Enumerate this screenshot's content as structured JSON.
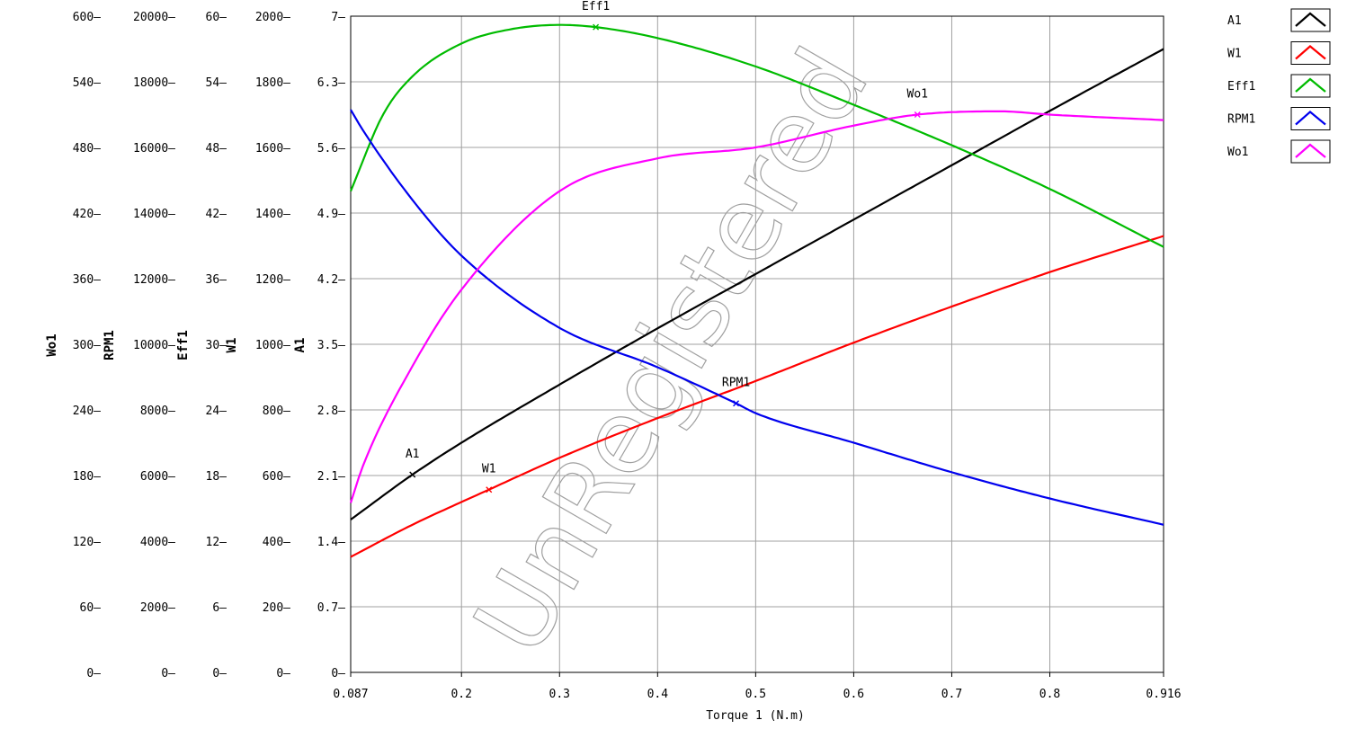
{
  "watermark": "UnRegistered",
  "chart_data": {
    "type": "line",
    "xlabel": "Torque 1 (N.m)",
    "xlim": [
      0.087,
      0.916
    ],
    "x_ticks": [
      "0.087",
      "0.2",
      "0.3",
      "0.4",
      "0.5",
      "0.6",
      "0.7",
      "0.8",
      "0.916"
    ],
    "x_tick_values": [
      0.087,
      0.2,
      0.3,
      0.4,
      0.5,
      0.6,
      0.7,
      0.8,
      0.916
    ],
    "y_axes": [
      {
        "label": "Wo1",
        "min": 0,
        "max": 600,
        "ticks": [
          "0",
          "60",
          "120",
          "180",
          "240",
          "300",
          "360",
          "420",
          "480",
          "540",
          "600"
        ]
      },
      {
        "label": "RPM1",
        "min": 0,
        "max": 20000,
        "ticks": [
          "0",
          "2000",
          "4000",
          "6000",
          "8000",
          "10000",
          "12000",
          "14000",
          "16000",
          "18000",
          "20000"
        ]
      },
      {
        "label": "Eff1",
        "min": 0,
        "max": 60,
        "ticks": [
          "0",
          "6",
          "12",
          "18",
          "24",
          "30",
          "36",
          "42",
          "48",
          "54",
          "60"
        ]
      },
      {
        "label": "W1",
        "min": 0,
        "max": 2000,
        "ticks": [
          "0",
          "200",
          "400",
          "600",
          "800",
          "1000",
          "1200",
          "1400",
          "1600",
          "1800",
          "2000"
        ]
      },
      {
        "label": "A1",
        "min": 0,
        "max": 7,
        "ticks": [
          "0",
          "0.7",
          "1.4",
          "2.1",
          "2.8",
          "3.5",
          "4.2",
          "4.9",
          "5.6",
          "6.3",
          "7"
        ]
      }
    ],
    "grid": true,
    "legend_placement": "right",
    "series": [
      {
        "name": "A1",
        "axis": "A1",
        "color": "#000000",
        "marker_label": "A1",
        "marker_x": 0.15,
        "x": [
          0.087,
          0.15,
          0.2,
          0.3,
          0.4,
          0.5,
          0.6,
          0.7,
          0.8,
          0.916
        ],
        "y": [
          1.63,
          2.11,
          2.45,
          3.07,
          3.67,
          4.25,
          4.83,
          5.41,
          5.99,
          6.65
        ]
      },
      {
        "name": "W1",
        "axis": "W1",
        "color": "#ff0000",
        "marker_label": "W1",
        "marker_x": 0.228,
        "x": [
          0.087,
          0.15,
          0.228,
          0.3,
          0.4,
          0.5,
          0.6,
          0.7,
          0.8,
          0.916
        ],
        "y": [
          352,
          450,
          557,
          654,
          775,
          888,
          1005,
          1115,
          1220,
          1330
        ]
      },
      {
        "name": "Eff1",
        "axis": "Eff1",
        "color": "#00bb00",
        "marker_label": "Eff1",
        "marker_x": 0.337,
        "x": [
          0.087,
          0.12,
          0.15,
          0.2,
          0.25,
          0.3,
          0.337,
          0.4,
          0.5,
          0.6,
          0.7,
          0.8,
          0.916
        ],
        "y": [
          44,
          51,
          54.5,
          57.5,
          58.8,
          59.2,
          59.0,
          58.0,
          55.4,
          51.9,
          48.2,
          44.2,
          38.9
        ]
      },
      {
        "name": "RPM1",
        "axis": "RPM1",
        "color": "#0000ee",
        "marker_label": "RPM1",
        "marker_x": 0.48,
        "x": [
          0.087,
          0.1,
          0.15,
          0.2,
          0.3,
          0.4,
          0.48,
          0.5,
          0.6,
          0.7,
          0.8,
          0.916
        ],
        "y": [
          17150,
          16500,
          14400,
          12700,
          10500,
          9300,
          8200,
          7900,
          7000,
          6100,
          5300,
          4500
        ]
      },
      {
        "name": "Wo1",
        "axis": "Wo1",
        "color": "#ff00ff",
        "marker_label": "Wo1",
        "marker_x": 0.665,
        "x": [
          0.087,
          0.1,
          0.15,
          0.2,
          0.3,
          0.4,
          0.5,
          0.6,
          0.665,
          0.75,
          0.8,
          0.916
        ],
        "y": [
          155,
          190,
          280,
          350,
          440,
          470,
          480,
          500,
          510,
          513,
          510,
          505
        ]
      }
    ]
  }
}
